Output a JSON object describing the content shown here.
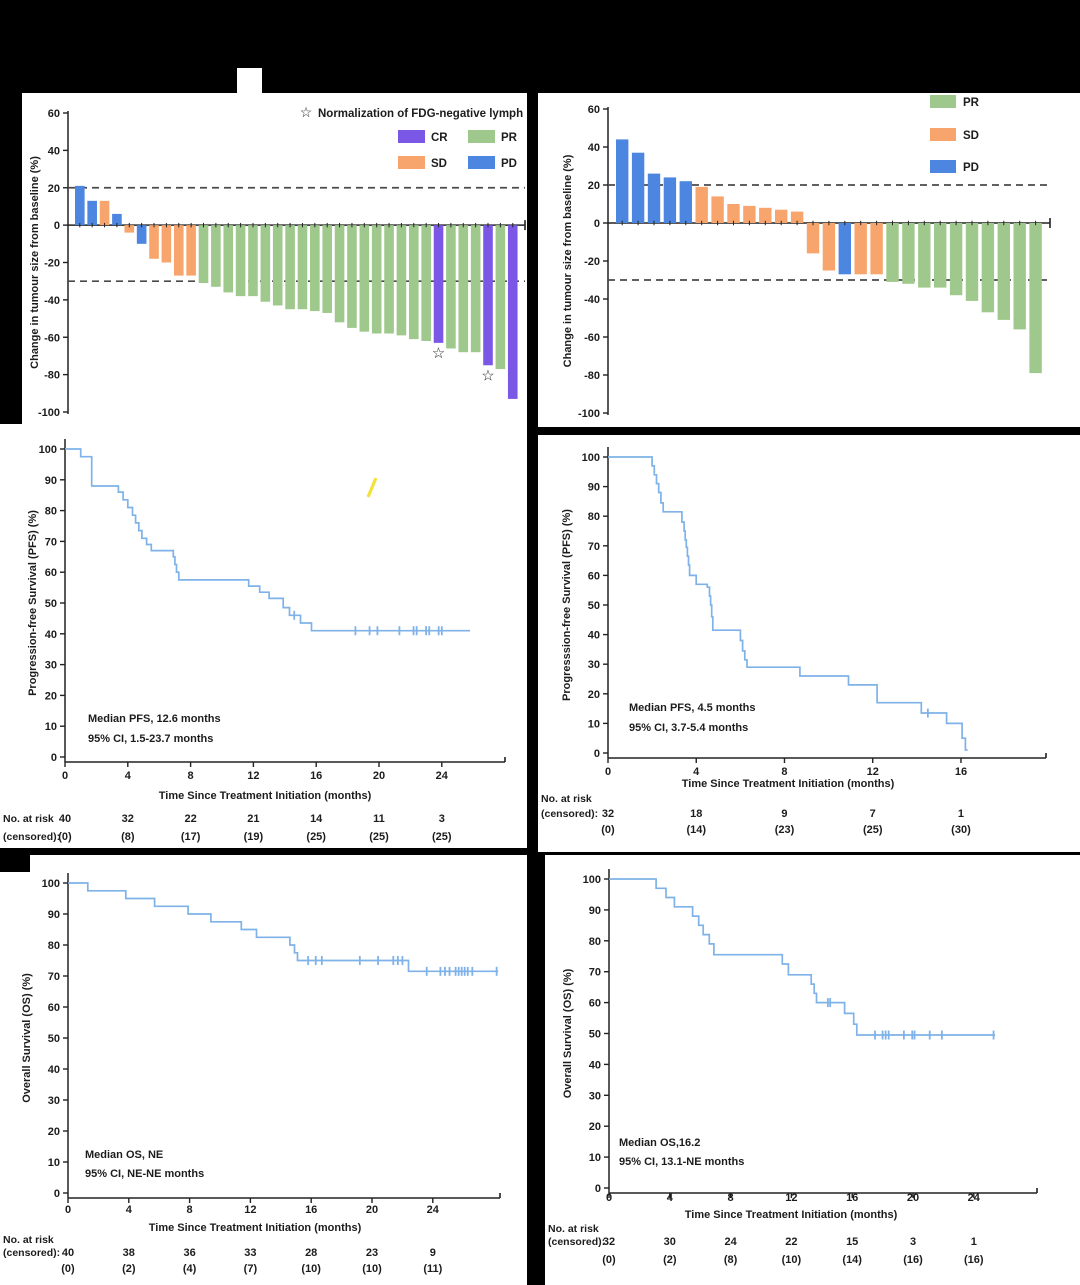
{
  "figure": {
    "background": "#000000",
    "panel_background": "#ffffff"
  },
  "colors": {
    "CR": "#7b57e6",
    "PR": "#9fc98c",
    "SD": "#f7a56c",
    "PD": "#4c86e0",
    "km_line": "#7fb2e8",
    "dashed_line": "#4a4a4a",
    "axis": "#222222",
    "text": "#1c1c1c",
    "artifact_yellow": "#f2e23b"
  },
  "chart_data": [
    {
      "id": "waterfall_a",
      "type": "bar",
      "ylabel": "Change in tumour size from baseline (%)",
      "ylim": [
        -100,
        60
      ],
      "yticks": [
        60,
        40,
        20,
        0,
        -20,
        -40,
        -60,
        -80,
        -100
      ],
      "ref_lines": [
        20,
        -30
      ],
      "legend_note": "Normalization of FDG-negative lymph node",
      "legend_note_symbol": "☆",
      "legend": [
        {
          "label": "CR",
          "color_key": "CR"
        },
        {
          "label": "PR",
          "color_key": "PR"
        },
        {
          "label": "SD",
          "color_key": "SD"
        },
        {
          "label": "PD",
          "color_key": "PD"
        }
      ],
      "values": [
        21,
        13,
        13,
        6,
        -4,
        -10,
        -18,
        -20,
        -27,
        -27,
        -31,
        -33,
        -36,
        -38,
        -38,
        -41,
        -43,
        -45,
        -45,
        -46,
        -47,
        -52,
        -55,
        -57,
        -58,
        -58,
        -59,
        -61,
        -62,
        -63,
        -66,
        -68,
        -68,
        -75,
        -77,
        -93
      ],
      "responses": [
        "PD",
        "PD",
        "SD",
        "PD",
        "SD",
        "PD",
        "SD",
        "SD",
        "SD",
        "SD",
        "PR",
        "PR",
        "PR",
        "PR",
        "PR",
        "PR",
        "PR",
        "PR",
        "PR",
        "PR",
        "PR",
        "PR",
        "PR",
        "PR",
        "PR",
        "PR",
        "PR",
        "PR",
        "PR",
        "CR",
        "PR",
        "PR",
        "PR",
        "CR",
        "PR",
        "CR"
      ],
      "star_indices": [
        29,
        33
      ]
    },
    {
      "id": "waterfall_b",
      "type": "bar",
      "ylabel": "Change in tumour size from baseline (%)",
      "ylim": [
        -100,
        60
      ],
      "yticks": [
        60,
        40,
        20,
        0,
        -20,
        -40,
        -60,
        -80,
        -100
      ],
      "ref_lines": [
        20,
        -30
      ],
      "legend": [
        {
          "label": "PR",
          "color_key": "PR"
        },
        {
          "label": "SD",
          "color_key": "SD"
        },
        {
          "label": "PD",
          "color_key": "PD"
        }
      ],
      "values": [
        44,
        37,
        26,
        24,
        22,
        19,
        14,
        10,
        9,
        8,
        7,
        6,
        -16,
        -25,
        -27,
        -27,
        -27,
        -31,
        -32,
        -34,
        -34,
        -38,
        -41,
        -47,
        -51,
        -56,
        -79
      ],
      "responses": [
        "PD",
        "PD",
        "PD",
        "PD",
        "PD",
        "SD",
        "SD",
        "SD",
        "SD",
        "SD",
        "SD",
        "SD",
        "SD",
        "SD",
        "PD",
        "SD",
        "SD",
        "PR",
        "PR",
        "PR",
        "PR",
        "PR",
        "PR",
        "PR",
        "PR",
        "PR",
        "PR"
      ],
      "star_indices": []
    },
    {
      "id": "km_pfs_a",
      "type": "line",
      "ylabel": "Progression-free Survival (PFS) (%)",
      "xlabel": "Time Since Treatment Initiation (months)",
      "annotation": [
        "Median PFS, 12.6 months",
        "95% CI, 1.5-23.7 months"
      ],
      "ylim": [
        0,
        100
      ],
      "yticks": [
        0,
        10,
        20,
        30,
        40,
        50,
        60,
        70,
        80,
        90,
        100
      ],
      "xticks": [
        0,
        4,
        8,
        12,
        16,
        20,
        24
      ],
      "steps": [
        [
          1.0,
          97.5
        ],
        [
          1.7,
          88
        ],
        [
          3.4,
          86
        ],
        [
          3.7,
          83.5
        ],
        [
          4.0,
          81
        ],
        [
          4.3,
          78.5
        ],
        [
          4.5,
          76
        ],
        [
          4.7,
          73.5
        ],
        [
          4.9,
          71
        ],
        [
          5.2,
          69
        ],
        [
          5.5,
          67
        ],
        [
          6.9,
          65
        ],
        [
          7.0,
          62.5
        ],
        [
          7.1,
          60
        ],
        [
          7.25,
          57.5
        ],
        [
          11.7,
          55.5
        ],
        [
          12.4,
          53.5
        ],
        [
          13.0,
          51.5
        ],
        [
          13.9,
          48.5
        ],
        [
          14.3,
          46
        ],
        [
          15.0,
          43.5
        ],
        [
          15.7,
          41
        ]
      ],
      "curve_end": 25.8,
      "censors": [
        [
          14.6,
          46
        ],
        [
          18.5,
          41
        ],
        [
          19.4,
          41
        ],
        [
          19.9,
          41
        ],
        [
          21.3,
          41
        ],
        [
          22.2,
          41
        ],
        [
          22.4,
          41
        ],
        [
          23.0,
          41
        ],
        [
          23.2,
          41
        ],
        [
          23.8,
          41
        ],
        [
          24.0,
          41
        ]
      ],
      "risk_table": {
        "header": null,
        "times": [
          0,
          4,
          8,
          12,
          16,
          20,
          24
        ],
        "rows": [
          {
            "label": "No. at risk",
            "cells": [
              "40",
              "32",
              "22",
              "21",
              "14",
              "11",
              "3"
            ]
          },
          {
            "label": "(censored):",
            "cells": [
              "(0)",
              "(8)",
              "(17)",
              "(19)",
              "(25)",
              "(25)",
              "(25)"
            ]
          }
        ]
      }
    },
    {
      "id": "km_pfs_b",
      "type": "line",
      "ylabel": "Progresssion-free Survival (PFS) (%)",
      "xlabel": "Time Since Treatment Initiation (months)",
      "annotation": [
        "Median PFS, 4.5 months",
        "95% CI, 3.7-5.4 months"
      ],
      "ylim": [
        0,
        100
      ],
      "yticks": [
        0,
        10,
        20,
        30,
        40,
        50,
        60,
        70,
        80,
        90,
        100
      ],
      "xticks": [
        0,
        4,
        8,
        12,
        16
      ],
      "steps": [
        [
          2.0,
          97
        ],
        [
          2.1,
          94
        ],
        [
          2.2,
          91
        ],
        [
          2.3,
          88
        ],
        [
          2.4,
          84.5
        ],
        [
          2.5,
          81.5
        ],
        [
          3.35,
          78
        ],
        [
          3.45,
          75
        ],
        [
          3.5,
          72
        ],
        [
          3.55,
          69.5
        ],
        [
          3.6,
          66.5
        ],
        [
          3.65,
          63.5
        ],
        [
          3.7,
          60
        ],
        [
          4.0,
          57
        ],
        [
          4.5,
          56
        ],
        [
          4.6,
          53
        ],
        [
          4.65,
          50
        ],
        [
          4.7,
          46
        ],
        [
          4.75,
          41.5
        ],
        [
          6.0,
          38
        ],
        [
          6.1,
          34.5
        ],
        [
          6.2,
          31.5
        ],
        [
          6.3,
          29
        ],
        [
          8.7,
          26
        ],
        [
          10.9,
          23
        ],
        [
          12.2,
          17
        ],
        [
          14.2,
          13.5
        ],
        [
          15.35,
          10
        ],
        [
          16.05,
          5
        ],
        [
          16.2,
          1
        ]
      ],
      "curve_end": 16.3,
      "censors": [
        [
          14.5,
          13.5
        ]
      ],
      "risk_table": {
        "header": "No. at risk",
        "times": [
          0,
          4,
          8,
          12,
          16
        ],
        "rows": [
          {
            "label": "(censored):",
            "cells": [
              "32",
              "18",
              "9",
              "7",
              "1"
            ]
          },
          {
            "label": "",
            "cells": [
              "(0)",
              "(14)",
              "(23)",
              "(25)",
              "(30)"
            ]
          }
        ]
      }
    },
    {
      "id": "km_os_a",
      "type": "line",
      "ylabel": "Overall Survival (OS) (%)",
      "xlabel": "Time Since Treatment Initiation (months)",
      "annotation": [
        "Median OS, NE",
        "95% CI, NE-NE months"
      ],
      "ylim": [
        0,
        100
      ],
      "yticks": [
        0,
        10,
        20,
        30,
        40,
        50,
        60,
        70,
        80,
        90,
        100
      ],
      "xticks": [
        0,
        4,
        8,
        12,
        16,
        20,
        24
      ],
      "steps": [
        [
          1.3,
          97.5
        ],
        [
          3.8,
          95
        ],
        [
          5.7,
          92.5
        ],
        [
          7.9,
          90
        ],
        [
          9.4,
          87.5
        ],
        [
          11.4,
          85
        ],
        [
          12.4,
          82.5
        ],
        [
          14.6,
          80
        ],
        [
          14.9,
          77.5
        ],
        [
          15.1,
          75
        ],
        [
          22.4,
          71.5
        ]
      ],
      "curve_end": 28.3,
      "censors": [
        [
          15.8,
          75
        ],
        [
          16.3,
          75
        ],
        [
          16.7,
          75
        ],
        [
          19.2,
          75
        ],
        [
          20.4,
          75
        ],
        [
          21.4,
          75
        ],
        [
          21.7,
          75
        ],
        [
          22.0,
          75
        ],
        [
          23.6,
          71.5
        ],
        [
          24.5,
          71.5
        ],
        [
          24.8,
          71.5
        ],
        [
          25.1,
          71.5
        ],
        [
          25.5,
          71.5
        ],
        [
          25.7,
          71.5
        ],
        [
          25.9,
          71.5
        ],
        [
          26.1,
          71.5
        ],
        [
          26.3,
          71.5
        ],
        [
          26.6,
          71.5
        ],
        [
          28.2,
          71.5
        ]
      ],
      "risk_table": {
        "header": "No. at risk",
        "times": [
          0,
          4,
          8,
          12,
          16,
          20,
          24
        ],
        "rows": [
          {
            "label": "(censored):",
            "cells": [
              "40",
              "38",
              "36",
              "33",
              "28",
              "23",
              "9"
            ]
          },
          {
            "label": "",
            "cells": [
              "(0)",
              "(2)",
              "(4)",
              "(7)",
              "(10)",
              "(10)",
              "(11)"
            ]
          }
        ]
      }
    },
    {
      "id": "km_os_b",
      "type": "line",
      "ylabel": "Overall Survival (OS) (%)",
      "xlabel": "Time Since Treatment Initiation (months)",
      "annotation": [
        "Median OS,16.2",
        "95% CI, 13.1-NE months"
      ],
      "ylim": [
        0,
        100
      ],
      "yticks": [
        0,
        10,
        20,
        30,
        40,
        50,
        60,
        70,
        80,
        90,
        100
      ],
      "xticks": [
        0,
        4,
        8,
        12,
        16,
        20,
        24
      ],
      "steps": [
        [
          3.1,
          97
        ],
        [
          3.75,
          94
        ],
        [
          4.3,
          91
        ],
        [
          5.5,
          88
        ],
        [
          5.9,
          85
        ],
        [
          6.2,
          82
        ],
        [
          6.6,
          79
        ],
        [
          6.9,
          75.5
        ],
        [
          11.4,
          72.5
        ],
        [
          11.8,
          69
        ],
        [
          13.3,
          66
        ],
        [
          13.5,
          63
        ],
        [
          13.65,
          60
        ],
        [
          15.5,
          56.5
        ],
        [
          16.1,
          53
        ],
        [
          16.3,
          49.5
        ]
      ],
      "curve_end": 25.4,
      "censors": [
        [
          14.4,
          60
        ],
        [
          14.55,
          60
        ],
        [
          17.5,
          49.5
        ],
        [
          18.0,
          49.5
        ],
        [
          18.2,
          49.5
        ],
        [
          18.4,
          49.5
        ],
        [
          19.4,
          49.5
        ],
        [
          19.95,
          49.5
        ],
        [
          20.1,
          49.5
        ],
        [
          21.1,
          49.5
        ],
        [
          21.9,
          49.5
        ],
        [
          25.3,
          49.5
        ]
      ],
      "risk_table": {
        "header": "No. at risk",
        "times": [
          0,
          4,
          8,
          12,
          16,
          20,
          24
        ],
        "rows": [
          {
            "label": "(censored):",
            "cells": [
              "32",
              "30",
              "24",
              "22",
              "15",
              "3",
              "1"
            ]
          },
          {
            "label": "",
            "cells": [
              "(0)",
              "(2)",
              "(8)",
              "(10)",
              "(14)",
              "(16)",
              "(16)"
            ]
          }
        ]
      }
    }
  ]
}
